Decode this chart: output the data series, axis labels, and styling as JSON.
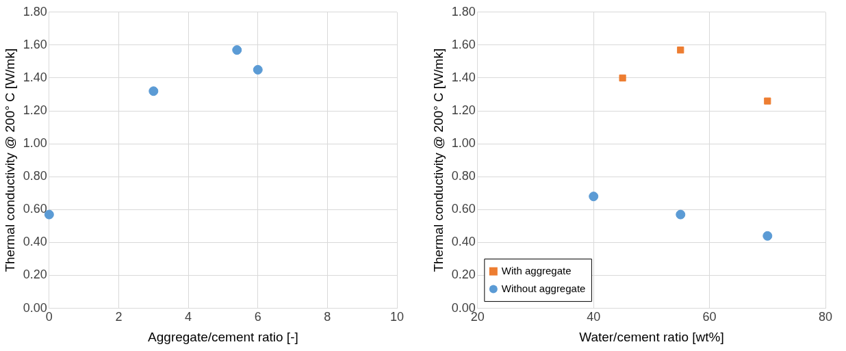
{
  "chart_data": [
    {
      "type": "scatter",
      "xlabel": "Aggregate/cement ratio [-]",
      "ylabel": "Thermal conductivity @ 200° C [W/mk]",
      "xlim": [
        0,
        10
      ],
      "xticks": [
        0,
        2,
        4,
        6,
        8,
        10
      ],
      "ylim": [
        0,
        1.8
      ],
      "yticks": [
        {
          "value": 0,
          "label": "0.00"
        },
        {
          "value": 0.2,
          "label": "0.20"
        },
        {
          "value": 0.4,
          "label": "0.40"
        },
        {
          "value": 0.6,
          "label": "0.60"
        },
        {
          "value": 0.8,
          "label": "0.80"
        },
        {
          "value": 1,
          "label": "1.00"
        },
        {
          "value": 1.2,
          "label": "1.20"
        },
        {
          "value": 1.4,
          "label": "1.40"
        },
        {
          "value": 1.6,
          "label": "1.60"
        },
        {
          "value": 1.8,
          "label": "1.80"
        }
      ],
      "grid": true,
      "marker": "circle",
      "series": [
        {
          "color": "#5b9bd5",
          "x": [
            0,
            3,
            5.4,
            6
          ],
          "values": [
            0.57,
            1.32,
            1.57,
            1.45
          ]
        }
      ]
    },
    {
      "type": "scatter",
      "xlabel": "Water/cement ratio [wt%]",
      "ylabel": "Thermal conductivity @ 200° C [W/mk]",
      "xlim": [
        20,
        80
      ],
      "xticks": [
        20,
        40,
        60,
        80
      ],
      "ylim": [
        0,
        1.8
      ],
      "yticks": [
        {
          "value": 0,
          "label": "0.00"
        },
        {
          "value": 0.2,
          "label": "0.20"
        },
        {
          "value": 0.4,
          "label": "0.40"
        },
        {
          "value": 0.6,
          "label": "0.60"
        },
        {
          "value": 0.8,
          "label": "0.80"
        },
        {
          "value": 1,
          "label": "1.00"
        },
        {
          "value": 1.2,
          "label": "1.20"
        },
        {
          "value": 1.4,
          "label": "1.40"
        },
        {
          "value": 1.6,
          "label": "1.60"
        },
        {
          "value": 1.8,
          "label": "1.80"
        }
      ],
      "grid": true,
      "legend": "bottom left",
      "series": [
        {
          "name": "With aggregate",
          "color": "#ed7d31",
          "marker": "square",
          "x": [
            45,
            55,
            70
          ],
          "values": [
            1.4,
            1.57,
            1.26
          ]
        },
        {
          "name": "Without aggregate",
          "color": "#5b9bd5",
          "marker": "circle",
          "x": [
            40,
            55,
            70
          ],
          "values": [
            0.68,
            0.57,
            0.44
          ]
        }
      ]
    }
  ]
}
